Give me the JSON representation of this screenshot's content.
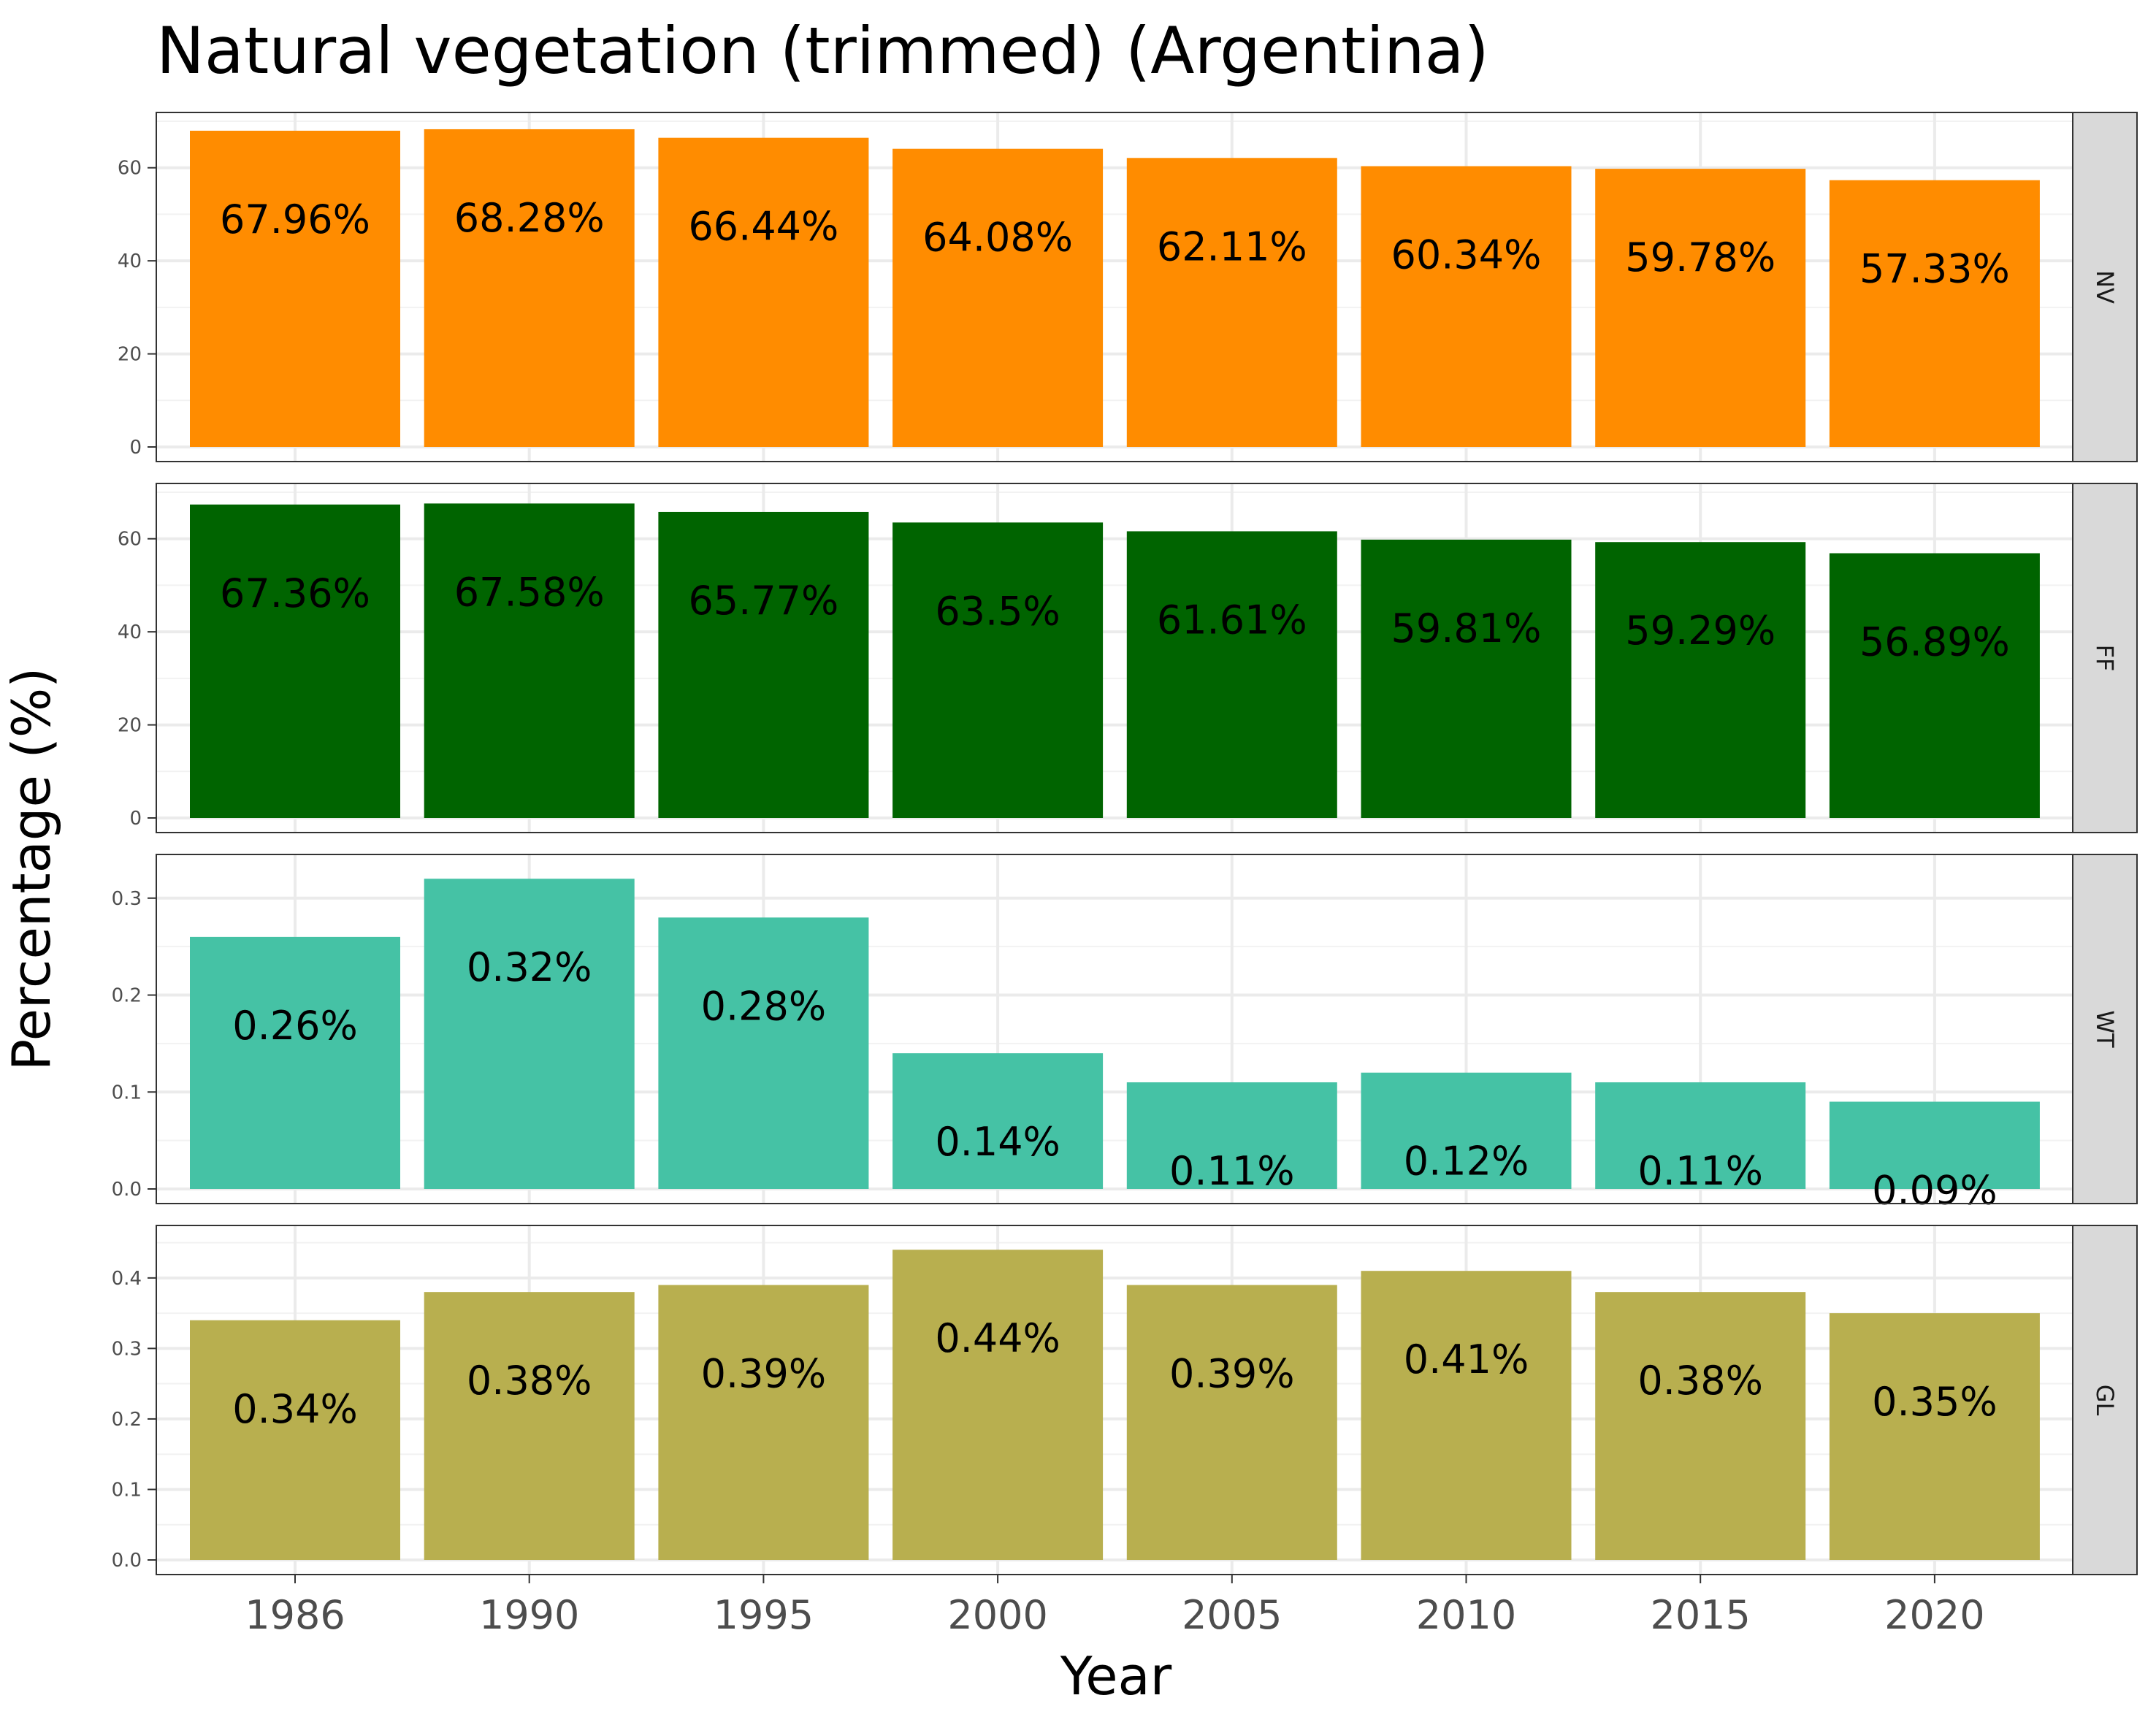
{
  "chart_data": {
    "type": "bar",
    "title": "Natural vegetation (trimmed) (Argentina)",
    "xlabel": "Year",
    "ylabel": "Percentage (%)",
    "categories": [
      "1986",
      "1990",
      "1995",
      "2000",
      "2005",
      "2010",
      "2015",
      "2020"
    ],
    "grid": true,
    "facets": [
      {
        "strip": "NV",
        "color": "#FF8C00",
        "ylim": [
          0,
          70
        ],
        "yticks": [
          "0",
          "20",
          "40",
          "60"
        ],
        "ytick_values": [
          0,
          20,
          40,
          60
        ],
        "values": [
          67.96,
          68.28,
          66.44,
          64.08,
          62.11,
          60.34,
          59.78,
          57.33
        ],
        "labels": [
          "67.96%",
          "68.28%",
          "66.44%",
          "64.08%",
          "62.11%",
          "60.34%",
          "59.78%",
          "57.33%"
        ]
      },
      {
        "strip": "FF",
        "color": "#006400",
        "ylim": [
          0,
          70
        ],
        "yticks": [
          "0",
          "20",
          "40",
          "60"
        ],
        "ytick_values": [
          0,
          20,
          40,
          60
        ],
        "values": [
          67.36,
          67.58,
          65.77,
          63.5,
          61.61,
          59.81,
          59.29,
          56.89
        ],
        "labels": [
          "67.36%",
          "67.58%",
          "65.77%",
          "63.5%",
          "61.61%",
          "59.81%",
          "59.29%",
          "56.89%"
        ]
      },
      {
        "strip": "WT",
        "color": "#45C2A5",
        "ylim": [
          0,
          0.336
        ],
        "yticks": [
          "0.0",
          "0.1",
          "0.2",
          "0.3"
        ],
        "ytick_values": [
          0,
          0.1,
          0.2,
          0.3
        ],
        "values": [
          0.26,
          0.32,
          0.28,
          0.14,
          0.11,
          0.12,
          0.11,
          0.09
        ],
        "labels": [
          "0.26%",
          "0.32%",
          "0.28%",
          "0.14%",
          "0.11%",
          "0.12%",
          "0.11%",
          "0.09%"
        ]
      },
      {
        "strip": "GL",
        "color": "#B8AF4F",
        "ylim": [
          0,
          0.462
        ],
        "yticks": [
          "0.0",
          "0.1",
          "0.2",
          "0.3",
          "0.4"
        ],
        "ytick_values": [
          0,
          0.1,
          0.2,
          0.3,
          0.4
        ],
        "values": [
          0.34,
          0.38,
          0.39,
          0.44,
          0.39,
          0.41,
          0.38,
          0.35
        ],
        "labels": [
          "0.34%",
          "0.38%",
          "0.39%",
          "0.44%",
          "0.39%",
          "0.41%",
          "0.38%",
          "0.35%"
        ]
      }
    ]
  }
}
